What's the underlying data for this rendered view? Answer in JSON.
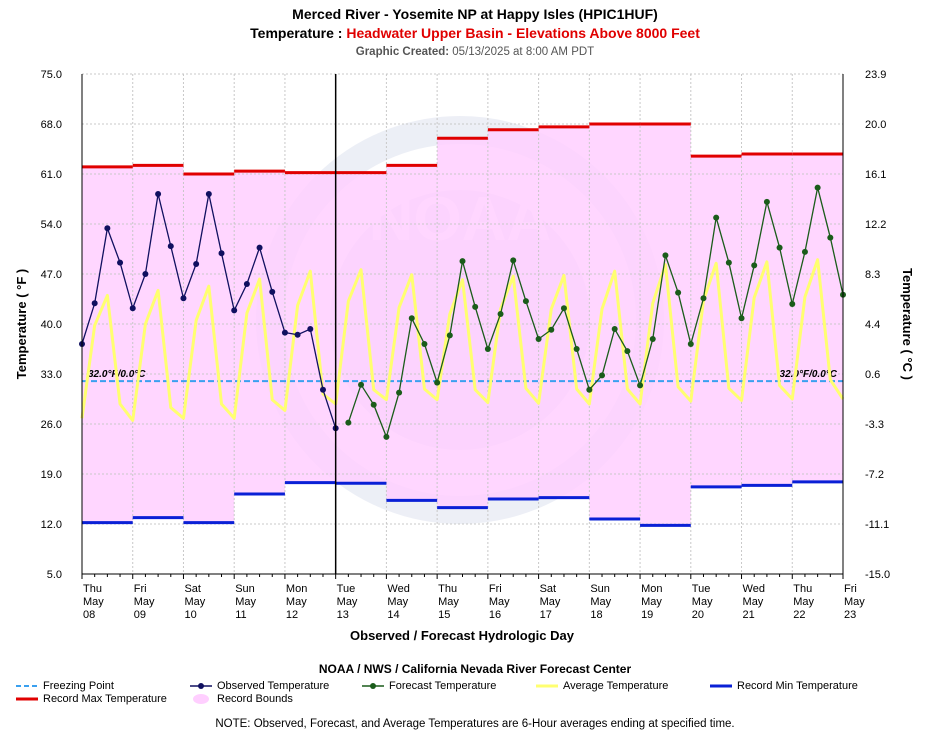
{
  "header": {
    "title_line1": "Merced River - Yosemite NP at Happy Isles (HPIC1HUF)",
    "title_line2_prefix": "Temperature : ",
    "title_line2_accent": "Headwater Upper Basin - Elevations Above 8000 Feet",
    "created_label": "Graphic Created:",
    "created_value": "05/13/2025 at 8:00 AM PDT"
  },
  "footer": {
    "agency": "NOAA / NWS / California Nevada River Forecast Center",
    "note": "NOTE: Observed, Forecast, and Average Temperatures are 6-Hour averages ending at specified time."
  },
  "legend": {
    "freezing": "Freezing Point",
    "observed": "Observed Temperature",
    "forecast": "Forecast Temperature",
    "average": "Average Temperature",
    "record_min": "Record Min Temperature",
    "record_max": "Record Max Temperature",
    "record_bounds": "Record Bounds"
  },
  "chart_data": {
    "type": "line",
    "xlabel": "Observed / Forecast Hydrologic Day",
    "ylabel": "Temperature ( °F )",
    "ylabel_right": "Temperature ( °C )",
    "ylim": [
      5,
      75
    ],
    "xlim": [
      0,
      60
    ],
    "y_ticks_left": [
      "75.0",
      "68.0",
      "61.0",
      "54.0",
      "47.0",
      "40.0",
      "33.0",
      "26.0",
      "19.0",
      "12.0",
      "5.0"
    ],
    "y_ticks_right": [
      "23.9",
      "20.0",
      "16.1",
      "12.2",
      "8.3",
      "4.4",
      "0.6",
      "-3.3",
      "-7.2",
      "-11.1",
      "-15.0"
    ],
    "x_ticks": [
      {
        "pos": 0,
        "day": "Thu",
        "mon": "May",
        "date": "08"
      },
      {
        "pos": 4,
        "day": "Fri",
        "mon": "May",
        "date": "09"
      },
      {
        "pos": 8,
        "day": "Sat",
        "mon": "May",
        "date": "10"
      },
      {
        "pos": 12,
        "day": "Sun",
        "mon": "May",
        "date": "11"
      },
      {
        "pos": 16,
        "day": "Mon",
        "mon": "May",
        "date": "12"
      },
      {
        "pos": 20,
        "day": "Tue",
        "mon": "May",
        "date": "13"
      },
      {
        "pos": 24,
        "day": "Wed",
        "mon": "May",
        "date": "14"
      },
      {
        "pos": 28,
        "day": "Thu",
        "mon": "May",
        "date": "15"
      },
      {
        "pos": 32,
        "day": "Fri",
        "mon": "May",
        "date": "16"
      },
      {
        "pos": 36,
        "day": "Sat",
        "mon": "May",
        "date": "17"
      },
      {
        "pos": 40,
        "day": "Sun",
        "mon": "May",
        "date": "18"
      },
      {
        "pos": 44,
        "day": "Mon",
        "mon": "May",
        "date": "19"
      },
      {
        "pos": 48,
        "day": "Tue",
        "mon": "May",
        "date": "20"
      },
      {
        "pos": 52,
        "day": "Wed",
        "mon": "May",
        "date": "21"
      },
      {
        "pos": 56,
        "day": "Thu",
        "mon": "May",
        "date": "22"
      },
      {
        "pos": 60,
        "day": "Fri",
        "mon": "May",
        "date": "23"
      }
    ],
    "now_marker": 20,
    "freezing_point": 32,
    "freezing_label": "32.0°F/0.0°C",
    "record_max": [
      62.0,
      62.2,
      61.0,
      61.4,
      61.2,
      61.2,
      62.2,
      66.0,
      67.2,
      67.6,
      68.0,
      68.0,
      63.5,
      63.8,
      63.8
    ],
    "record_min": [
      12.2,
      12.9,
      12.2,
      16.2,
      17.8,
      17.7,
      15.3,
      14.3,
      15.5,
      15.7,
      12.7,
      11.8,
      17.2,
      17.4,
      17.9
    ],
    "observed": [
      37.2,
      42.9,
      53.4,
      48.6,
      42.2,
      47.0,
      58.2,
      50.9,
      43.6,
      48.4,
      58.2,
      49.9,
      41.9,
      45.6,
      50.7,
      44.5,
      38.8,
      38.5,
      39.3,
      30.8,
      25.4
    ],
    "forecast_start": 21,
    "forecast": [
      26.2,
      31.5,
      28.7,
      24.2,
      30.4,
      40.8,
      37.2,
      31.8,
      38.4,
      48.8,
      42.4,
      36.5,
      41.4,
      48.9,
      43.2,
      37.9,
      39.2,
      42.2,
      36.5,
      30.8,
      32.8,
      39.3,
      36.2,
      31.4,
      37.9,
      49.6,
      44.4,
      37.2,
      43.6,
      54.9,
      48.6,
      40.8,
      48.2,
      57.1,
      50.7,
      42.8,
      50.1,
      59.1,
      52.1,
      44.1
    ],
    "average": [
      26.8,
      39.8,
      44.0,
      28.8,
      26.5,
      40.0,
      44.7,
      28.3,
      26.8,
      40.5,
      45.3,
      28.8,
      26.8,
      41.5,
      46.3,
      29.4,
      27.9,
      42.6,
      47.4,
      30.2,
      28.8,
      43.2,
      47.6,
      30.8,
      29.4,
      42.3,
      46.9,
      30.9,
      29.4,
      41.4,
      46.2,
      30.8,
      29.0,
      42.1,
      46.7,
      31.0,
      28.9,
      42.1,
      46.8,
      30.9,
      28.8,
      42.1,
      47.4,
      30.9,
      28.8,
      42.9,
      48.3,
      31.2,
      29.2,
      43.3,
      48.5,
      31.0,
      29.3,
      43.7,
      48.7,
      31.4,
      29.5,
      43.8,
      49.0,
      32.2,
      29.5
    ]
  }
}
